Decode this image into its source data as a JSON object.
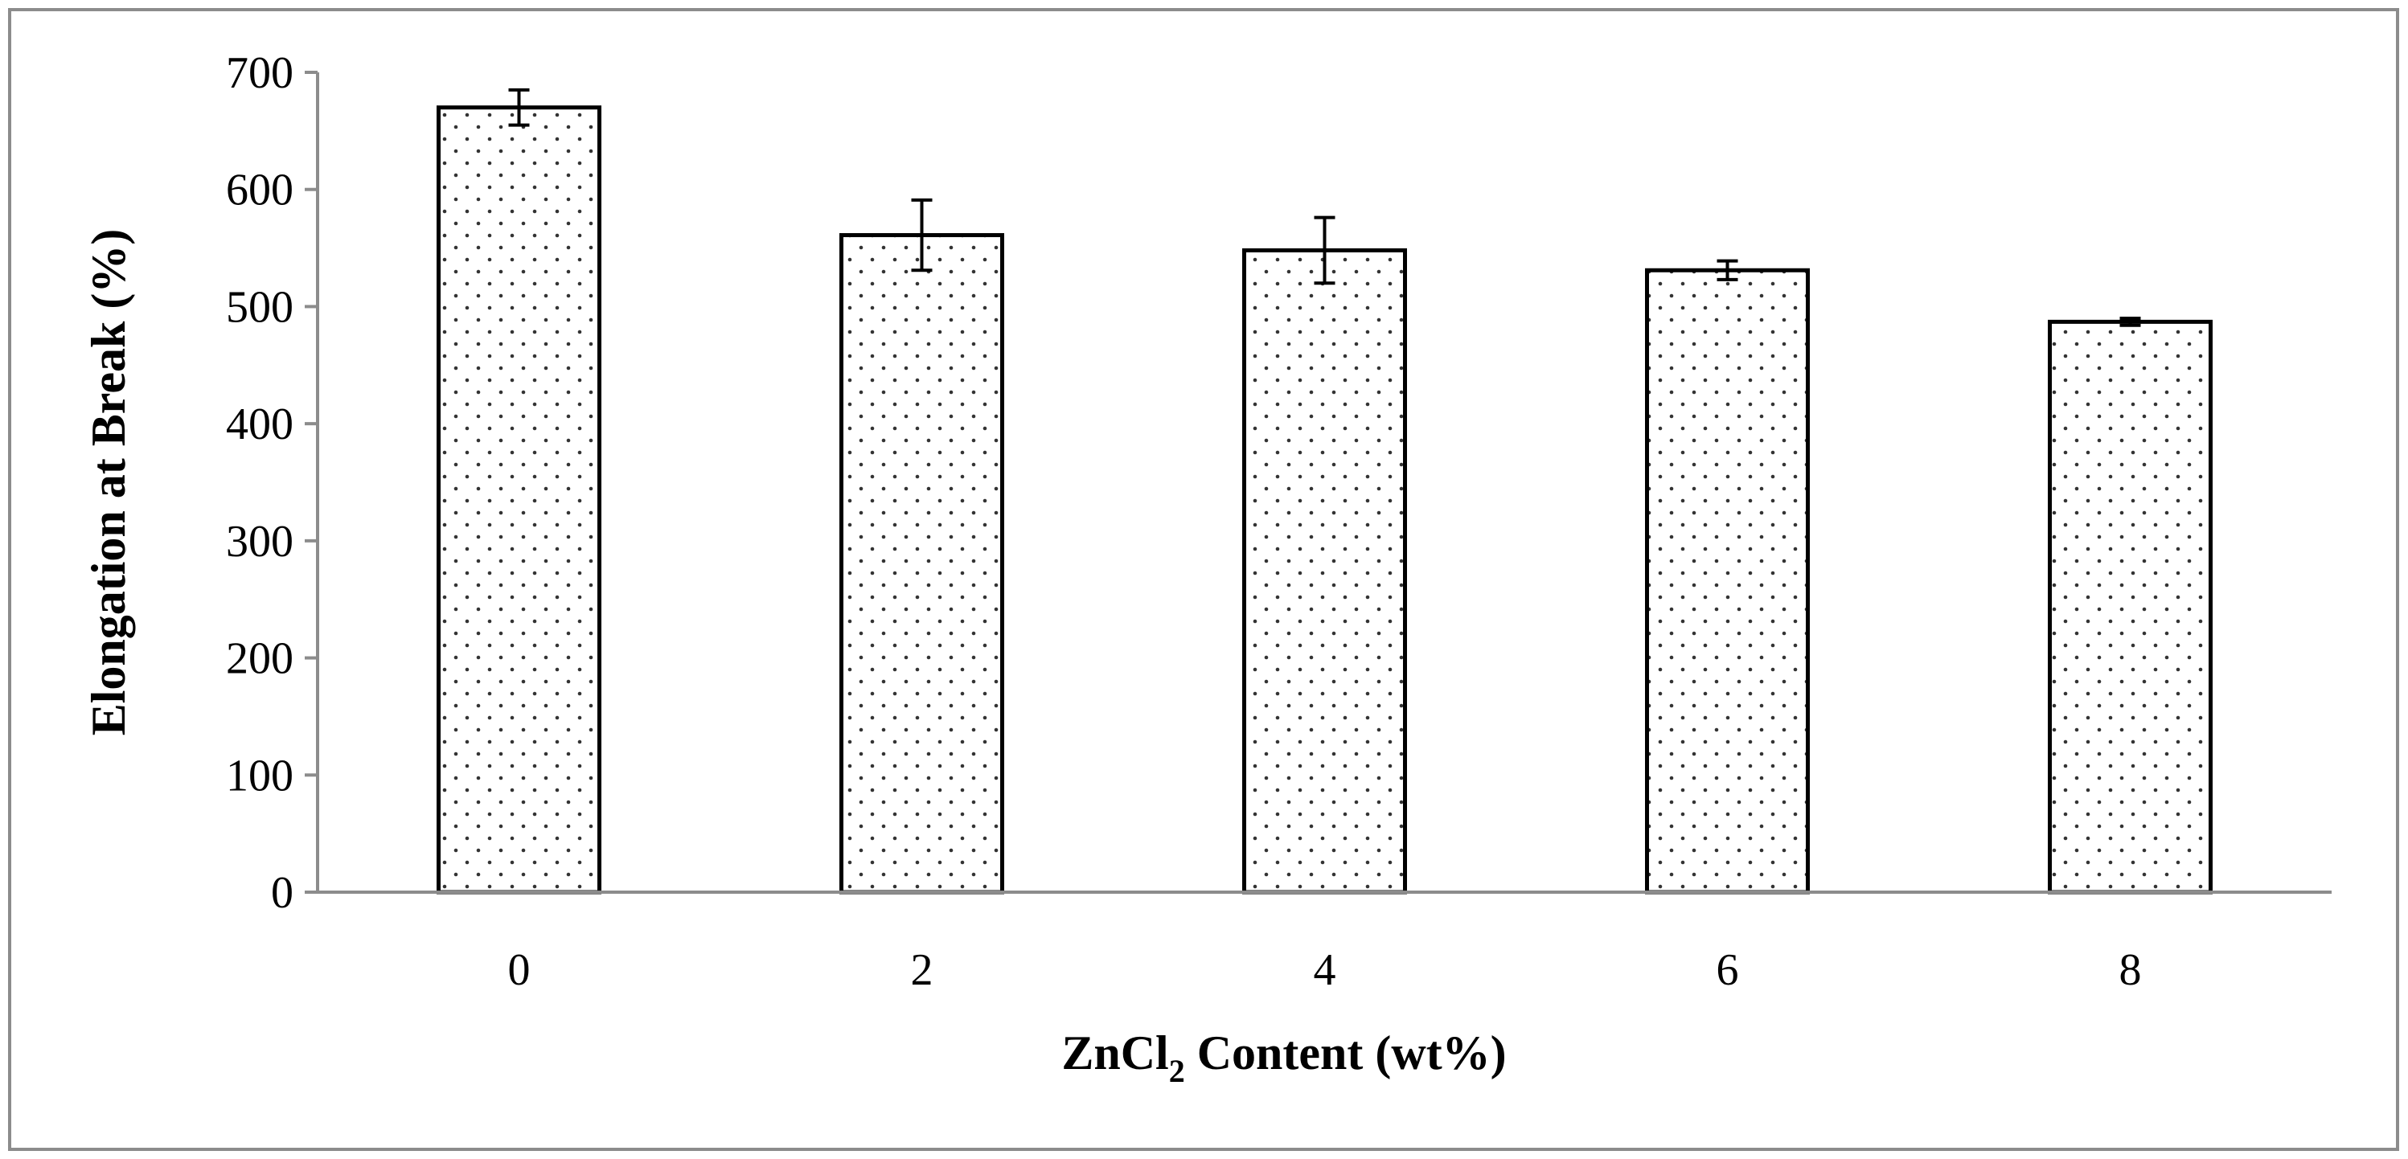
{
  "chart_data": {
    "type": "bar",
    "categories": [
      "0",
      "2",
      "4",
      "6",
      "8"
    ],
    "values": [
      670,
      561,
      548,
      531,
      487
    ],
    "error": [
      15,
      30,
      28,
      8,
      3
    ],
    "xlabel": {
      "prefix": "ZnCl",
      "subscript": "2",
      "suffix": " Content (wt%)"
    },
    "ylabel": "Elongation at Break (%)",
    "ylim": [
      0,
      700
    ],
    "yticks": [
      0,
      100,
      200,
      300,
      400,
      500,
      600,
      700
    ],
    "grid": false,
    "legend": "none",
    "bar_fill": "dotted pattern",
    "colors": {
      "bar_stroke": "#000000",
      "dot": "#333333",
      "axis": "#8c8c8c",
      "frame": "#8c8c8c",
      "background": "#ffffff"
    }
  }
}
